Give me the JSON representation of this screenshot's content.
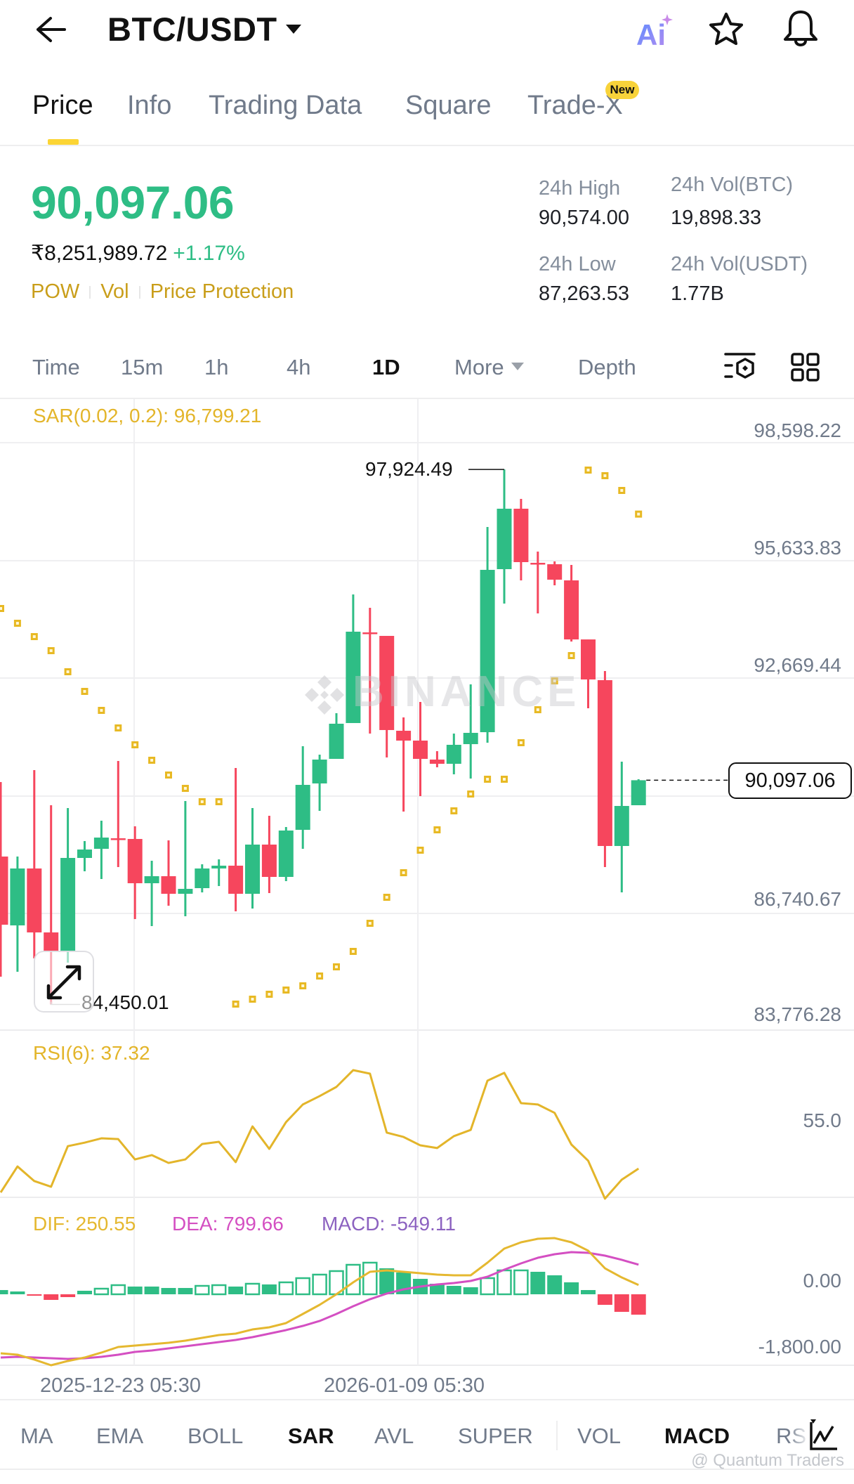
{
  "header": {
    "pair": "BTC/USDT",
    "icons": [
      "back-arrow-icon",
      "ai-assistant-icon",
      "star-favorite-icon",
      "bell-alert-icon"
    ],
    "ai_label": "Ai"
  },
  "tabs": [
    {
      "label": "Price",
      "active": true
    },
    {
      "label": "Info"
    },
    {
      "label": "Trading Data"
    },
    {
      "label": "Square"
    },
    {
      "label": "Trade-X",
      "badge": "New"
    }
  ],
  "ticker": {
    "last_price": "90,097.06",
    "fiat_price": "₹8,251,989.72",
    "change_pct": "+1.17%",
    "tags": [
      "POW",
      "Vol",
      "Price Protection"
    ],
    "stats": {
      "high_label": "24h High",
      "high_value": "90,574.00",
      "vol_btc_label": "24h Vol(BTC)",
      "vol_btc_value": "19,898.33",
      "low_label": "24h Low",
      "low_value": "87,263.53",
      "vol_usdt_label": "24h Vol(USDT)",
      "vol_usdt_value": "1.77B"
    }
  },
  "intervals": {
    "items": [
      "Time",
      "15m",
      "1h",
      "4h",
      "1D",
      "More",
      "Depth"
    ],
    "active": "1D",
    "icons": [
      "chart-settings-icon",
      "layout-grid-icon"
    ]
  },
  "colors": {
    "up": "#2ebd85",
    "down": "#f6465d",
    "sar": "#e8b923",
    "rsi": "#e3b52a",
    "dif": "#e5b830",
    "dea": "#d44fc2",
    "macd": "#8c62c0",
    "accent": "#fcd535"
  },
  "chart": {
    "sar_label": "SAR(0.02, 0.2): 96,799.21",
    "y_axis": [
      "98,598.22",
      "95,633.83",
      "92,669.44",
      "86,740.67",
      "83,776.28"
    ],
    "current_price_tag": "90,097.06",
    "high_marker": "97,924.49",
    "low_marker": "84,450.01",
    "watermark": "BINANCE",
    "rsi_label": "RSI(6): 37.32",
    "rsi_axis": "55.0",
    "dif_label": "DIF: 250.55",
    "dea_label": "DEA: 799.66",
    "macd_label": "MACD: -549.11",
    "macd_axis": [
      "0.00",
      "-1,800.00"
    ],
    "dates": [
      "2025-12-23 05:30",
      "2026-01-09 05:30"
    ]
  },
  "indicator_tabs": [
    {
      "label": "MA"
    },
    {
      "label": "EMA"
    },
    {
      "label": "BOLL"
    },
    {
      "label": "SAR",
      "active": true
    },
    {
      "label": "AVL"
    },
    {
      "label": "SUPER"
    },
    {
      "label": "VOL"
    },
    {
      "label": "MACD",
      "active": true
    },
    {
      "label": "RS"
    }
  ],
  "footer_watermark": "@ Quantum Traders",
  "chart_data": {
    "type": "candlestick",
    "title": "BTC/USDT 1D",
    "y_ticks": [
      98598.22,
      95633.83,
      92669.44,
      86740.67,
      83776.28
    ],
    "current_price": 90097.06,
    "x_labels": [
      "2025-12-23 05:30",
      "2026-01-09 05:30"
    ],
    "candles": [
      [
        88175,
        90051,
        85149,
        86458
      ],
      [
        86441,
        88175,
        85273,
        87874
      ],
      [
        87874,
        90352,
        85609,
        86264
      ],
      [
        86264,
        89467,
        84450.01,
        85804
      ],
      [
        85804,
        89396,
        85503,
        88140
      ],
      [
        88140,
        88565,
        87804,
        88352
      ],
      [
        88370,
        89078,
        87609,
        88653
      ],
      [
        88635,
        90582,
        87910,
        88600
      ],
      [
        88618,
        88936,
        86600,
        87503
      ],
      [
        87503,
        88069,
        86423,
        87680
      ],
      [
        87680,
        88582,
        86937,
        87237
      ],
      [
        87237,
        89573,
        86671,
        87361
      ],
      [
        87379,
        87980,
        87272,
        87874
      ],
      [
        87874,
        88104,
        87432,
        87945
      ],
      [
        87945,
        90405,
        86795,
        87237
      ],
      [
        87237,
        89396,
        86865,
        88476
      ],
      [
        88476,
        89201,
        87255,
        87662
      ],
      [
        87662,
        88918,
        87556,
        88830
      ],
      [
        88848,
        90954,
        88370,
        89980
      ],
      [
        90016,
        90741,
        89326,
        90617
      ],
      [
        90635,
        91785,
        90635,
        91520
      ],
      [
        91537,
        94776,
        91537,
        93838
      ],
      [
        93820,
        94440,
        91272,
        93785
      ],
      [
        93732,
        93732,
        90670,
        91361
      ],
      [
        91343,
        91679,
        89308,
        91095
      ],
      [
        91095,
        92068,
        89697,
        90635
      ],
      [
        90617,
        90829,
        90423,
        90511
      ],
      [
        90511,
        91272,
        90246,
        90989
      ],
      [
        91006,
        92511,
        90139,
        91290
      ],
      [
        91307,
        96475,
        91042,
        95395
      ],
      [
        95413,
        97924.49,
        94546,
        96935
      ],
      [
        96935,
        97183,
        95130,
        95590
      ],
      [
        95572,
        95855,
        94298,
        95537
      ],
      [
        95537,
        95608,
        95006,
        95148
      ],
      [
        95130,
        95519,
        93590,
        93643
      ],
      [
        93643,
        93643,
        91909,
        92635
      ],
      [
        92617,
        92847,
        87910,
        88441
      ],
      [
        88441,
        90564,
        87272,
        89449
      ],
      [
        89467,
        90122,
        89467,
        90097.06
      ]
    ],
    "sar": [
      94422,
      94050,
      93714,
      93360,
      92829,
      92334,
      91856,
      91414,
      90989,
      90600,
      90228,
      89892,
      89556,
      89556,
      84459,
      84583,
      84707,
      84813,
      84919,
      85166,
      85397,
      85786,
      86494,
      87149,
      87768,
      88335,
      88848,
      89326,
      89750,
      90122,
      90122,
      91042,
      91873,
      92599,
      93236,
      97908,
      97767,
      97395,
      96799.21
    ],
    "rsi6": [
      28.5,
      38.1,
      32.7,
      30.6,
      45.6,
      46.9,
      48.5,
      48.2,
      40.7,
      42.3,
      39.4,
      40.7,
      46.4,
      47.2,
      39.7,
      52.9,
      44.6,
      54.5,
      61.0,
      64.1,
      67.5,
      73.7,
      72.4,
      50.6,
      49.0,
      45.9,
      44.9,
      49.3,
      51.6,
      69.8,
      72.7,
      61.5,
      61.0,
      57.9,
      46.2,
      40.2,
      26.2,
      33.2,
      37.32
    ],
    "dif": [
      -1590,
      -1628,
      -1760,
      -1912,
      -1798,
      -1704,
      -1571,
      -1420,
      -1382,
      -1344,
      -1306,
      -1249,
      -1174,
      -1098,
      -1060,
      -947,
      -890,
      -776,
      -530,
      -284,
      0,
      322,
      606,
      644,
      606,
      568,
      530,
      511,
      511,
      852,
      1230,
      1401,
      1495,
      1514,
      1401,
      1174,
      700,
      454,
      250.55
    ],
    "dea": [
      -1704,
      -1685,
      -1704,
      -1723,
      -1742,
      -1723,
      -1685,
      -1628,
      -1552,
      -1514,
      -1458,
      -1401,
      -1344,
      -1287,
      -1230,
      -1155,
      -1060,
      -965,
      -852,
      -719,
      -530,
      -322,
      -133,
      19,
      133,
      208,
      265,
      303,
      360,
      473,
      663,
      833,
      984,
      1079,
      1136,
      1117,
      1041,
      928,
      799.66
    ],
    "macd_hist": [
      114,
      76,
      -38,
      -151,
      -76,
      95,
      170,
      265,
      208,
      208,
      170,
      170,
      246,
      265,
      208,
      303,
      265,
      341,
      454,
      549,
      644,
      814,
      871,
      700,
      587,
      416,
      284,
      227,
      189,
      454,
      663,
      663,
      606,
      511,
      322,
      114,
      -284,
      -473,
      -549.11
    ],
    "macd_hist_hollow": [
      6,
      7,
      12,
      13,
      15,
      17,
      18,
      19,
      20,
      21,
      22,
      29,
      30,
      31
    ],
    "rsi_axis_tick": 55.0,
    "macd_axis_ticks": [
      0.0,
      -1800.0
    ],
    "grid": true
  }
}
